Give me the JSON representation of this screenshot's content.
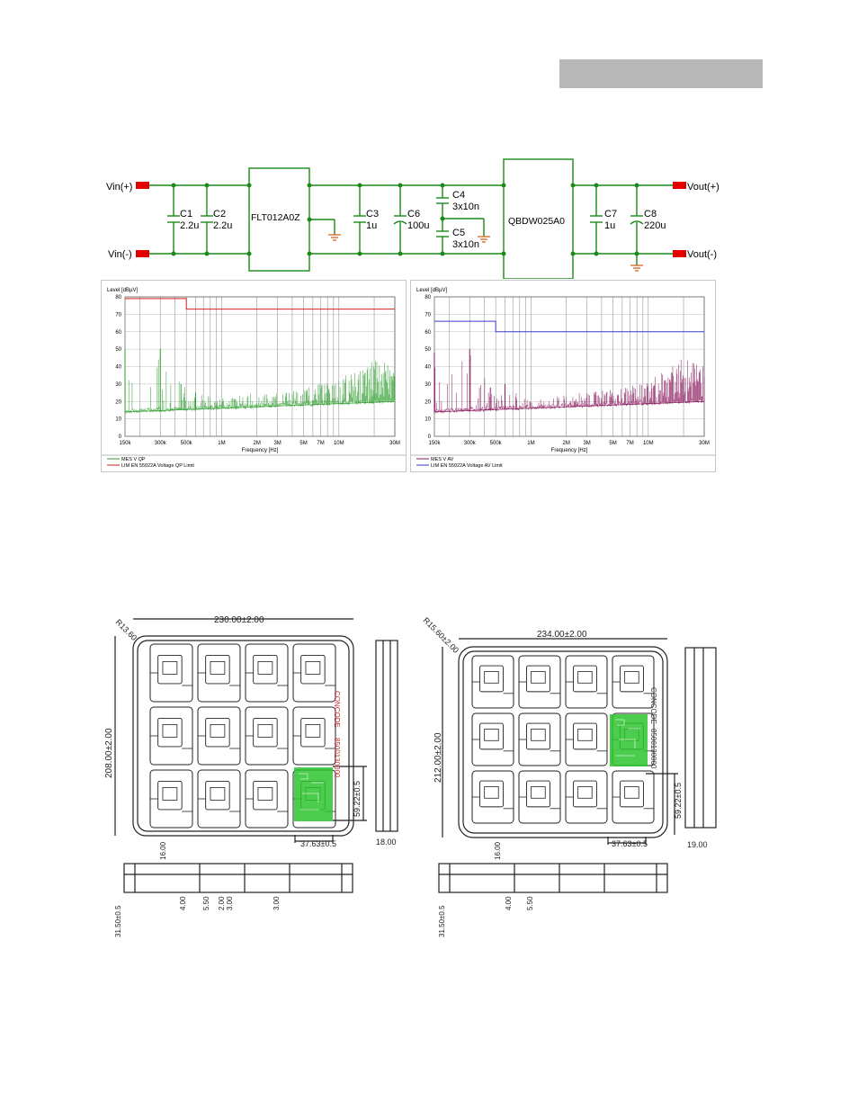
{
  "schematic": {
    "input_pos": "Vin(+)",
    "input_neg": "Vin(-)",
    "output_pos": "Vout(+)",
    "output_neg": "Vout(-)",
    "filter_module": "FLT012A0Z",
    "converter_module": "QBDW025A0",
    "capacitors": [
      {
        "name": "C1",
        "value": "2.2u"
      },
      {
        "name": "C2",
        "value": "2.2u"
      },
      {
        "name": "C3",
        "value": "1u"
      },
      {
        "name": "C6",
        "value": "100u"
      },
      {
        "name": "C4",
        "value": "3x10n"
      },
      {
        "name": "C5",
        "value": "3x10n"
      },
      {
        "name": "C7",
        "value": "1u"
      },
      {
        "name": "C8",
        "value": "220u"
      }
    ]
  },
  "chart_data": [
    {
      "type": "line",
      "ylabel": "Level [dBµV]",
      "xlabel": "Frequency [Hz]",
      "ylim": [
        0,
        80
      ],
      "yticks": [
        "0",
        "10",
        "20",
        "30",
        "40",
        "50",
        "60",
        "70",
        "80"
      ],
      "xticks": [
        "150k",
        "300k",
        "500k",
        "1M",
        "2M",
        "3M",
        "5M",
        "7M",
        "10M",
        "30M"
      ],
      "x_scale": "log",
      "series": [
        {
          "name": "MES   V QP",
          "color": "#2e9e2e",
          "peaks": [
            [
              0.15,
              50
            ],
            [
              0.3,
              50
            ],
            [
              0.45,
              30
            ],
            [
              0.6,
              25
            ],
            [
              1,
              22
            ],
            [
              2,
              25
            ],
            [
              5,
              28
            ],
            [
              10,
              33
            ],
            [
              20,
              44
            ],
            [
              30,
              42
            ]
          ]
        },
        {
          "name": "LIM   EN 55022A Voltage QP Limit",
          "color": "#d02020",
          "values": [
            [
              0.15,
              79
            ],
            [
              0.5,
              79
            ],
            [
              0.5,
              73
            ],
            [
              30,
              73
            ]
          ]
        }
      ],
      "legend_lines": [
        "MES   V QP",
        "LIM   EN 55022A Voltage QP Limit"
      ]
    },
    {
      "type": "line",
      "ylabel": "Level [dBµV]",
      "xlabel": "Frequency [Hz]",
      "ylim": [
        0,
        80
      ],
      "yticks": [
        "0",
        "10",
        "20",
        "30",
        "40",
        "50",
        "60",
        "70",
        "80"
      ],
      "xticks": [
        "150k",
        "300k",
        "500k",
        "1M",
        "2M",
        "3M",
        "5M",
        "7M",
        "10M",
        "30M"
      ],
      "x_scale": "log",
      "series": [
        {
          "name": "MES   V AV",
          "color": "#8a1a5e",
          "peaks": [
            [
              0.15,
              48
            ],
            [
              0.3,
              50
            ],
            [
              0.45,
              28
            ],
            [
              0.6,
              30
            ],
            [
              1,
              20
            ],
            [
              2,
              24
            ],
            [
              5,
              27
            ],
            [
              10,
              32
            ],
            [
              20,
              45
            ],
            [
              30,
              40
            ]
          ]
        },
        {
          "name": "LIM   EN 55022A Voltage AV Limit",
          "color": "#3a3ad0",
          "values": [
            [
              0.15,
              66
            ],
            [
              0.5,
              66
            ],
            [
              0.5,
              60
            ],
            [
              30,
              60
            ]
          ]
        }
      ],
      "legend_lines": [
        "MES   V AV",
        "LIM   EN 55022A Voltage AV Limit"
      ]
    }
  ],
  "tray_left": {
    "radius": "R13.60",
    "width": "230.00±2.00",
    "height": "208.00±2.00",
    "pocket_w": "37.63±0.5",
    "pocket_h": "59.22±0.5",
    "side_depth": "18.00",
    "label_1": "CONCODE",
    "label_2": "8500130000",
    "bottom_dims": [
      "16.00",
      "31.50±0.5",
      "4.00",
      "5.50",
      "2.00",
      "3.00",
      "3.00"
    ]
  },
  "tray_right": {
    "radius": "R15.60±2.00",
    "width": "234.00±2.00",
    "height": "212.00±2.00",
    "pocket_w": "37.63±0.5",
    "pocket_h": "59.22±0.5",
    "side_depth": "19.00",
    "label_1": "CONCODE",
    "label_2": "8500130000",
    "bottom_dims": [
      "16.00",
      "31.50±0.5",
      "4.00",
      "5.50"
    ]
  }
}
